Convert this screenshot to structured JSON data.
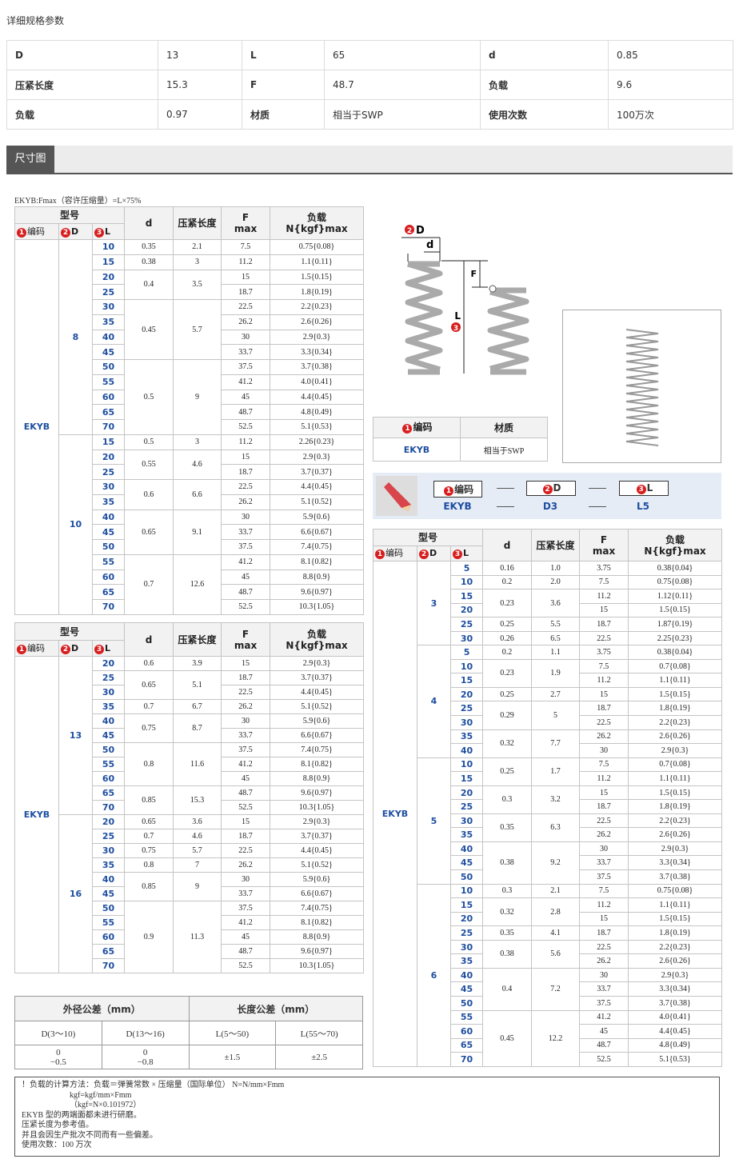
{
  "header": {
    "title": "详细规格参数"
  },
  "spec_table": {
    "rows": [
      [
        "D",
        "13",
        "L",
        "65",
        "d",
        "0.85"
      ],
      [
        "压紧长度",
        "15.3",
        "F",
        "48.7",
        "负载",
        "9.6"
      ],
      [
        "负载",
        "0.97",
        "材质",
        "相当于SWP",
        "使用次数",
        "100万次"
      ]
    ]
  },
  "section": {
    "title": "尺寸图"
  },
  "fmax_note": "EKYB:Fmax（容许压缩量）=L×75%",
  "table_header": {
    "model": "型号",
    "code_no": "1",
    "code": "编码",
    "D_no": "2",
    "D": "D",
    "L_no": "3",
    "L": "L",
    "d": "d",
    "stroke": "压紧长度",
    "F": "F",
    "F_unit": "max",
    "load": "负载",
    "load_unit": "N{kgf}max"
  },
  "tables": [
    {
      "code": "EKYB",
      "groups": [
        {
          "D": "8",
          "items": [
            {
              "d": "0.35",
              "stroke": "2.1",
              "rows": [
                [
                  "10",
                  "7.5",
                  "0.75{0.08}"
                ]
              ]
            },
            {
              "d": "0.38",
              "stroke": "3",
              "rows": [
                [
                  "15",
                  "11.2",
                  "1.1{0.11}"
                ]
              ]
            },
            {
              "d": "0.4",
              "stroke": "3.5",
              "rows": [
                [
                  "20",
                  "15",
                  "1.5{0.15}"
                ],
                [
                  "25",
                  "18.7",
                  "1.8{0.19}"
                ]
              ]
            },
            {
              "d": "0.45",
              "stroke": "5.7",
              "rows": [
                [
                  "30",
                  "22.5",
                  "2.2{0.23}"
                ],
                [
                  "35",
                  "26.2",
                  "2.6{0.26}"
                ],
                [
                  "40",
                  "30",
                  "2.9{0.3}"
                ],
                [
                  "45",
                  "33.7",
                  "3.3{0.34}"
                ]
              ]
            },
            {
              "d": "0.5",
              "stroke": "9",
              "rows": [
                [
                  "50",
                  "37.5",
                  "3.7{0.38}"
                ],
                [
                  "55",
                  "41.2",
                  "4.0{0.41}"
                ],
                [
                  "60",
                  "45",
                  "4.4{0.45}"
                ],
                [
                  "65",
                  "48.7",
                  "4.8{0.49}"
                ],
                [
                  "70",
                  "52.5",
                  "5.1{0.53}"
                ]
              ]
            }
          ]
        },
        {
          "D": "10",
          "items": [
            {
              "d": "0.5",
              "stroke": "3",
              "rows": [
                [
                  "15",
                  "11.2",
                  "2.26{0.23}"
                ]
              ]
            },
            {
              "d": "0.55",
              "stroke": "4.6",
              "rows": [
                [
                  "20",
                  "15",
                  "2.9{0.3}"
                ],
                [
                  "25",
                  "18.7",
                  "3.7{0.37}"
                ]
              ]
            },
            {
              "d": "0.6",
              "stroke": "6.6",
              "rows": [
                [
                  "30",
                  "22.5",
                  "4.4{0.45}"
                ],
                [
                  "35",
                  "26.2",
                  "5.1{0.52}"
                ]
              ]
            },
            {
              "d": "0.65",
              "stroke": "9.1",
              "rows": [
                [
                  "40",
                  "30",
                  "5.9{0.6}"
                ],
                [
                  "45",
                  "33.7",
                  "6.6{0.67}"
                ],
                [
                  "50",
                  "37.5",
                  "7.4{0.75}"
                ]
              ]
            },
            {
              "d": "0.7",
              "stroke": "12.6",
              "rows": [
                [
                  "55",
                  "41.2",
                  "8.1{0.82}"
                ],
                [
                  "60",
                  "45",
                  "8.8{0.9}"
                ],
                [
                  "65",
                  "48.7",
                  "9.6{0.97}"
                ],
                [
                  "70",
                  "52.5",
                  "10.3{1.05}"
                ]
              ]
            }
          ]
        }
      ]
    },
    {
      "code": "EKYB",
      "groups": [
        {
          "D": "13",
          "items": [
            {
              "d": "0.6",
              "stroke": "3.9",
              "rows": [
                [
                  "20",
                  "15",
                  "2.9{0.3}"
                ]
              ]
            },
            {
              "d": "0.65",
              "stroke": "5.1",
              "rows": [
                [
                  "25",
                  "18.7",
                  "3.7{0.37}"
                ],
                [
                  "30",
                  "22.5",
                  "4.4{0.45}"
                ]
              ]
            },
            {
              "d": "0.7",
              "stroke": "6.7",
              "rows": [
                [
                  "35",
                  "26.2",
                  "5.1{0.52}"
                ]
              ]
            },
            {
              "d": "0.75",
              "stroke": "8.7",
              "rows": [
                [
                  "40",
                  "30",
                  "5.9{0.6}"
                ],
                [
                  "45",
                  "33.7",
                  "6.6{0.67}"
                ]
              ]
            },
            {
              "d": "0.8",
              "stroke": "11.6",
              "rows": [
                [
                  "50",
                  "37.5",
                  "7.4{0.75}"
                ],
                [
                  "55",
                  "41.2",
                  "8.1{0.82}"
                ],
                [
                  "60",
                  "45",
                  "8.8{0.9}"
                ]
              ]
            },
            {
              "d": "0.85",
              "stroke": "15.3",
              "rows": [
                [
                  "65",
                  "48.7",
                  "9.6{0.97}"
                ],
                [
                  "70",
                  "52.5",
                  "10.3{1.05}"
                ]
              ]
            }
          ]
        },
        {
          "D": "16",
          "items": [
            {
              "d": "0.65",
              "stroke": "3.6",
              "rows": [
                [
                  "20",
                  "15",
                  "2.9{0.3}"
                ]
              ]
            },
            {
              "d": "0.7",
              "stroke": "4.6",
              "rows": [
                [
                  "25",
                  "18.7",
                  "3.7{0.37}"
                ]
              ]
            },
            {
              "d": "0.75",
              "stroke": "5.7",
              "rows": [
                [
                  "30",
                  "22.5",
                  "4.4{0.45}"
                ]
              ]
            },
            {
              "d": "0.8",
              "stroke": "7",
              "rows": [
                [
                  "35",
                  "26.2",
                  "5.1{0.52}"
                ]
              ]
            },
            {
              "d": "0.85",
              "stroke": "9",
              "rows": [
                [
                  "40",
                  "30",
                  "5.9{0.6}"
                ],
                [
                  "45",
                  "33.7",
                  "6.6{0.67}"
                ]
              ]
            },
            {
              "d": "0.9",
              "stroke": "11.3",
              "rows": [
                [
                  "50",
                  "37.5",
                  "7.4{0.75}"
                ],
                [
                  "55",
                  "41.2",
                  "8.1{0.82}"
                ],
                [
                  "60",
                  "45",
                  "8.8{0.9}"
                ],
                [
                  "65",
                  "48.7",
                  "9.6{0.97}"
                ],
                [
                  "70",
                  "52.5",
                  "10.3{1.05}"
                ]
              ]
            }
          ]
        }
      ]
    },
    {
      "code": "EKYB",
      "groups": [
        {
          "D": "3",
          "items": [
            {
              "d": "0.16",
              "stroke": "1.0",
              "rows": [
                [
                  "5",
                  "3.75",
                  "0.38{0.04}"
                ]
              ]
            },
            {
              "d": "0.2",
              "stroke": "2.0",
              "rows": [
                [
                  "10",
                  "7.5",
                  "0.75{0.08}"
                ]
              ]
            },
            {
              "d": "0.23",
              "stroke": "3.6",
              "rows": [
                [
                  "15",
                  "11.2",
                  "1.12{0.11}"
                ],
                [
                  "20",
                  "15",
                  "1.5{0.15}"
                ]
              ]
            },
            {
              "d": "0.25",
              "stroke": "5.5",
              "rows": [
                [
                  "25",
                  "18.7",
                  "1.87{0.19}"
                ]
              ]
            },
            {
              "d": "0.26",
              "stroke": "6.5",
              "rows": [
                [
                  "30",
                  "22.5",
                  "2.25{0.23}"
                ]
              ]
            }
          ]
        },
        {
          "D": "4",
          "items": [
            {
              "d": "0.2",
              "stroke": "1.1",
              "rows": [
                [
                  "5",
                  "3.75",
                  "0.38{0.04}"
                ]
              ]
            },
            {
              "d": "0.23",
              "stroke": "1.9",
              "rows": [
                [
                  "10",
                  "7.5",
                  "0.7{0.08}"
                ],
                [
                  "15",
                  "11.2",
                  "1.1{0.11}"
                ]
              ]
            },
            {
              "d": "0.25",
              "stroke": "2.7",
              "rows": [
                [
                  "20",
                  "15",
                  "1.5{0.15}"
                ]
              ]
            },
            {
              "d": "0.29",
              "stroke": "5",
              "rows": [
                [
                  "25",
                  "18.7",
                  "1.8{0.19}"
                ],
                [
                  "30",
                  "22.5",
                  "2.2{0.23}"
                ]
              ]
            },
            {
              "d": "0.32",
              "stroke": "7.7",
              "rows": [
                [
                  "35",
                  "26.2",
                  "2.6{0.26}"
                ],
                [
                  "40",
                  "30",
                  "2.9{0.3}"
                ]
              ]
            }
          ]
        },
        {
          "D": "5",
          "items": [
            {
              "d": "0.25",
              "stroke": "1.7",
              "rows": [
                [
                  "10",
                  "7.5",
                  "0.7{0.08}"
                ],
                [
                  "15",
                  "11.2",
                  "1.1{0.11}"
                ]
              ]
            },
            {
              "d": "0.3",
              "stroke": "3.2",
              "rows": [
                [
                  "20",
                  "15",
                  "1.5{0.15}"
                ],
                [
                  "25",
                  "18.7",
                  "1.8{0.19}"
                ]
              ]
            },
            {
              "d": "0.35",
              "stroke": "6.3",
              "rows": [
                [
                  "30",
                  "22.5",
                  "2.2{0.23}"
                ],
                [
                  "35",
                  "26.2",
                  "2.6{0.26}"
                ]
              ]
            },
            {
              "d": "0.38",
              "stroke": "9.2",
              "rows": [
                [
                  "40",
                  "30",
                  "2.9{0.3}"
                ],
                [
                  "45",
                  "33.7",
                  "3.3{0.34}"
                ],
                [
                  "50",
                  "37.5",
                  "3.7{0.38}"
                ]
              ]
            }
          ]
        },
        {
          "D": "6",
          "items": [
            {
              "d": "0.3",
              "stroke": "2.1",
              "rows": [
                [
                  "10",
                  "7.5",
                  "0.75{0.08}"
                ]
              ]
            },
            {
              "d": "0.32",
              "stroke": "2.8",
              "rows": [
                [
                  "15",
                  "11.2",
                  "1.1{0.11}"
                ],
                [
                  "20",
                  "15",
                  "1.5{0.15}"
                ]
              ]
            },
            {
              "d": "0.35",
              "stroke": "4.1",
              "rows": [
                [
                  "25",
                  "18.7",
                  "1.8{0.19}"
                ]
              ]
            },
            {
              "d": "0.38",
              "stroke": "5.6",
              "rows": [
                [
                  "30",
                  "22.5",
                  "2.2{0.23}"
                ],
                [
                  "35",
                  "26.2",
                  "2.6{0.26}"
                ]
              ]
            },
            {
              "d": "0.4",
              "stroke": "7.2",
              "rows": [
                [
                  "40",
                  "30",
                  "2.9{0.3}"
                ],
                [
                  "45",
                  "33.7",
                  "3.3{0.34}"
                ],
                [
                  "50",
                  "37.5",
                  "3.7{0.38}"
                ]
              ]
            },
            {
              "d": "0.45",
              "stroke": "12.2",
              "rows": [
                [
                  "55",
                  "41.2",
                  "4.0{0.41}"
                ],
                [
                  "60",
                  "45",
                  "4.4{0.45}"
                ],
                [
                  "65",
                  "48.7",
                  "4.8{0.49}"
                ],
                [
                  "70",
                  "52.5",
                  "5.1{0.53}"
                ]
              ]
            }
          ]
        }
      ]
    }
  ],
  "tolerance": {
    "outer_title": "外径公差（mm）",
    "length_title": "长度公差（mm）",
    "columns": [
      "D(3～10)",
      "D(13～16)",
      "L(5～50)",
      "L(55～70)"
    ],
    "values": [
      [
        "0",
        "−0.5"
      ],
      [
        "0",
        "−0.8"
      ],
      [
        "±1.5"
      ],
      [
        "±2.5"
      ]
    ]
  },
  "material_table": {
    "header": "材质",
    "code": "EKYB",
    "material": "相当于SWP"
  },
  "code_example": {
    "values": [
      "EKYB",
      "D3",
      "L5"
    ]
  },
  "notes": [
    "！负载的计算方法：负载＝弹簧常数 × 压缩量（国际单位） N=N/mm×Fmm",
    "kgf=kgf/mm×Fmm",
    "（kgf=N×0.101972）",
    "EKYB 型的两端面都未进行研磨。",
    "压紧长度为参考值。",
    "并且会因生产批次不同而有一些偏差。",
    "使用次数：100 万次"
  ]
}
